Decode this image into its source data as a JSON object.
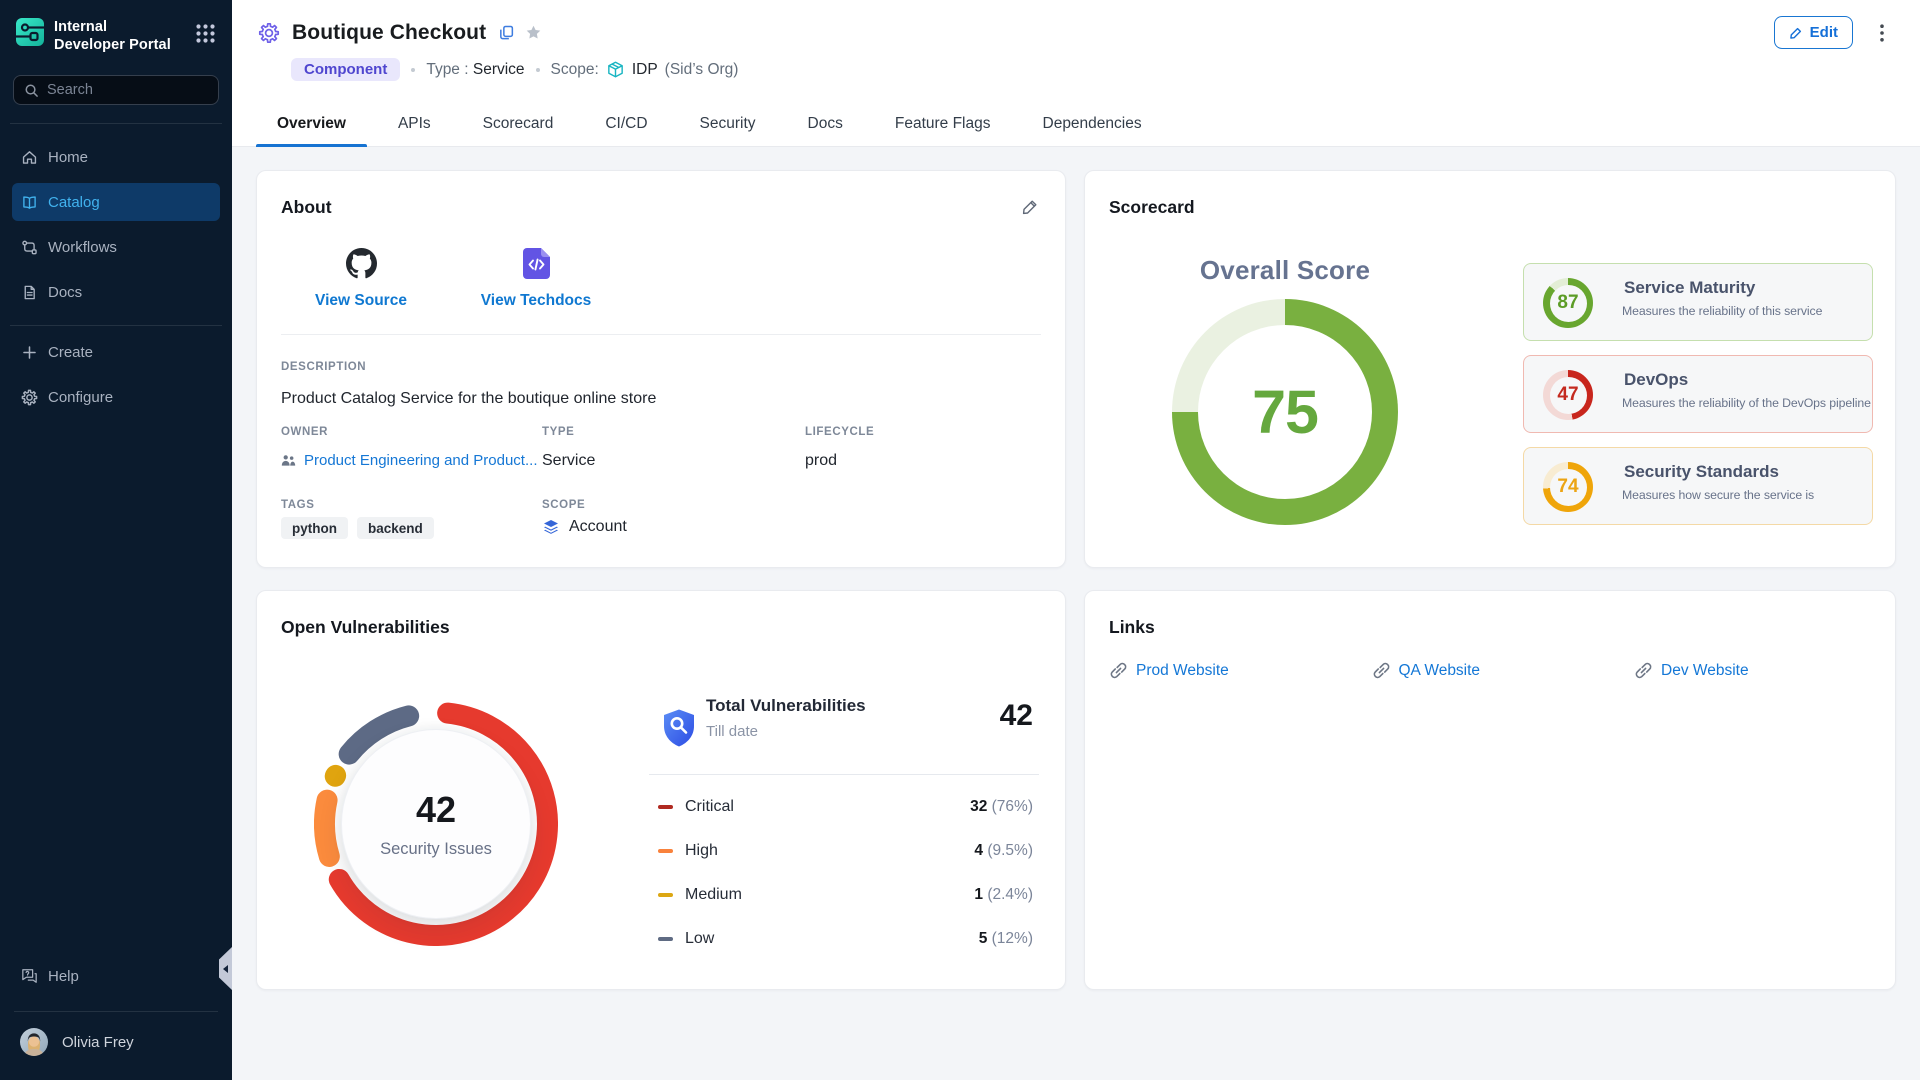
{
  "app": {
    "name_line1": "Internal",
    "name_line2": "Developer Portal"
  },
  "sidebar": {
    "search_placeholder": "Search",
    "items": [
      {
        "label": "Home",
        "active": false
      },
      {
        "label": "Catalog",
        "active": true
      },
      {
        "label": "Workflows",
        "active": false
      },
      {
        "label": "Docs",
        "active": false
      }
    ],
    "actions": [
      {
        "label": "Create"
      },
      {
        "label": "Configure"
      }
    ],
    "help_label": "Help",
    "user": {
      "name": "Olivia Frey"
    }
  },
  "header": {
    "title": "Boutique Checkout",
    "badge": "Component",
    "type_label": "Type :",
    "type_value": "Service",
    "scope_label": "Scope:",
    "scope_value": "IDP",
    "scope_org": "(Sid’s Org)",
    "edit_label": "Edit"
  },
  "tabs": {
    "items": [
      {
        "label": "Overview",
        "active": true
      },
      {
        "label": "APIs",
        "active": false
      },
      {
        "label": "Scorecard",
        "active": false
      },
      {
        "label": "CI/CD",
        "active": false
      },
      {
        "label": "Security",
        "active": false
      },
      {
        "label": "Docs",
        "active": false
      },
      {
        "label": "Feature Flags",
        "active": false
      },
      {
        "label": "Dependencies",
        "active": false
      }
    ]
  },
  "about": {
    "title": "About",
    "quick_links": [
      {
        "label": "View Source",
        "icon": "github-icon"
      },
      {
        "label": "View Techdocs",
        "icon": "techdocs-icon"
      }
    ],
    "description_label": "DESCRIPTION",
    "description": "Product Catalog Service for the boutique online store",
    "owner_label": "OWNER",
    "owner": "Product Engineering and Product...",
    "type_label": "TYPE",
    "type": "Service",
    "lifecycle_label": "LIFECYCLE",
    "lifecycle": "prod",
    "tags_label": "TAGS",
    "tags": [
      "python",
      "backend"
    ],
    "scope_label": "SCOPE",
    "scope": "Account"
  },
  "scorecard": {
    "title": "Scorecard",
    "overall_label": "Overall Score",
    "overall": {
      "value": 75,
      "color": "#79b040",
      "track": "#eaf1e1",
      "number_color": "#65a83e"
    },
    "metrics": [
      {
        "name": "Service Maturity",
        "description": "Measures the reliability of this service",
        "value": 87,
        "color": "#68a62f",
        "track": "#e3eed6",
        "number_color": "#5c9c26",
        "border": "#c5dfae"
      },
      {
        "name": "DevOps",
        "description": "Measures the reliability of the DevOps pipeline",
        "value": 47,
        "color": "#c8261d",
        "track": "#f3d9d6",
        "number_color": "#c42a1f",
        "border": "#f0b9b1"
      },
      {
        "name": "Security Standards",
        "description": "Measures how secure the service is",
        "value": 74,
        "color": "#efa50a",
        "track": "#f8ecd2",
        "number_color": "#eca413",
        "border": "#f4d9a6"
      }
    ]
  },
  "vulnerabilities": {
    "title": "Open Vulnerabilities",
    "center_count": "42",
    "center_label": "Security Issues",
    "total_title": "Total Vulnerabilities",
    "total_sub": "Till date",
    "total_count": "42",
    "severities": [
      {
        "label": "Critical",
        "count": "32",
        "pct": "(76%)",
        "share": 76,
        "arc_color": "#e63a2e",
        "pill_color": "#b02a21"
      },
      {
        "label": "High",
        "count": "4",
        "pct": "(9.5%)",
        "share": 9.5,
        "arc_color": "#fb8b3d",
        "pill_color": "#f9823c"
      },
      {
        "label": "Medium",
        "count": "1",
        "pct": "(2.4%)",
        "share": 2.4,
        "arc_color": "#e0a40f",
        "pill_color": "#dca713"
      },
      {
        "label": "Low",
        "count": "5",
        "pct": "(12%)",
        "share": 12,
        "arc_color": "#5d6a85",
        "pill_color": "#5f6b83"
      }
    ]
  },
  "links": {
    "title": "Links",
    "items": [
      {
        "label": "Prod Website"
      },
      {
        "label": "QA Website"
      },
      {
        "label": "Dev Website"
      }
    ]
  }
}
